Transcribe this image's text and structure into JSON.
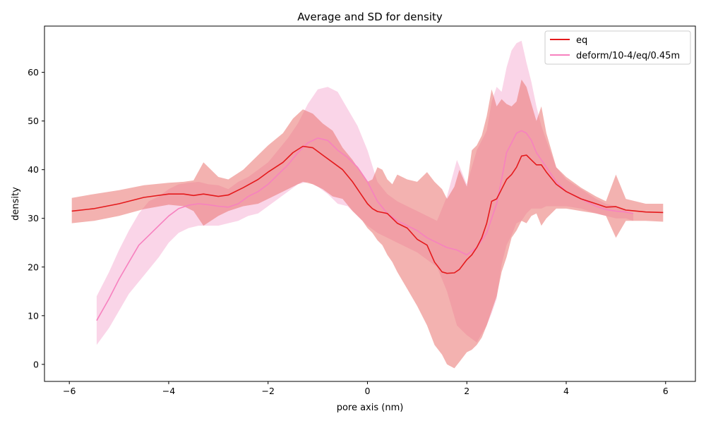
{
  "chart_data": {
    "type": "line",
    "title": "Average and SD for density",
    "xlabel": "pore axis (nm)",
    "ylabel": "density",
    "xlim": [
      -6.5,
      6.6
    ],
    "ylim": [
      -3.5,
      69.5
    ],
    "xticks": [
      -6,
      -4,
      -2,
      0,
      2,
      4,
      6
    ],
    "xtick_labels": [
      "−6",
      "−4",
      "−2",
      "0",
      "2",
      "4",
      "6"
    ],
    "yticks": [
      0,
      10,
      20,
      30,
      40,
      50,
      60
    ],
    "ytick_labels": [
      "0",
      "10",
      "20",
      "30",
      "40",
      "50",
      "60"
    ],
    "grid": false,
    "legend_position": "top-right",
    "series": [
      {
        "name": "eq",
        "color": "#e41a1c",
        "band_color": "#e9736f",
        "x": [
          -5.95,
          -5.5,
          -5.0,
          -4.5,
          -4.0,
          -3.7,
          -3.5,
          -3.3,
          -3.0,
          -2.8,
          -2.5,
          -2.2,
          -2.0,
          -1.7,
          -1.5,
          -1.3,
          -1.1,
          -0.9,
          -0.7,
          -0.5,
          -0.3,
          -0.1,
          0.0,
          0.1,
          0.2,
          0.3,
          0.4,
          0.5,
          0.6,
          0.8,
          1.0,
          1.2,
          1.35,
          1.5,
          1.6,
          1.75,
          1.85,
          2.0,
          2.1,
          2.2,
          2.3,
          2.4,
          2.5,
          2.6,
          2.7,
          2.8,
          2.9,
          3.0,
          3.1,
          3.2,
          3.3,
          3.4,
          3.5,
          3.6,
          3.8,
          4.0,
          4.3,
          4.6,
          4.8,
          5.0,
          5.2,
          5.6,
          5.95
        ],
        "y": [
          31.5,
          32.0,
          33.0,
          34.3,
          35.0,
          35.0,
          34.7,
          35.0,
          34.5,
          34.8,
          36.3,
          38.0,
          39.5,
          41.5,
          43.5,
          44.8,
          44.5,
          43.0,
          41.5,
          40.0,
          37.5,
          34.5,
          33.0,
          32.0,
          31.4,
          31.2,
          31.0,
          30.0,
          29.0,
          28.0,
          25.7,
          24.5,
          21.0,
          19.0,
          18.7,
          18.8,
          19.5,
          21.5,
          22.5,
          24.0,
          26.0,
          29.0,
          33.5,
          34.0,
          36.0,
          38.0,
          39.0,
          40.5,
          42.8,
          43.0,
          42.0,
          41.0,
          41.0,
          39.5,
          37.0,
          35.5,
          34.0,
          33.0,
          32.3,
          32.4,
          31.7,
          31.3,
          31.2
        ],
        "upper": [
          34.2,
          35.0,
          35.8,
          36.8,
          37.3,
          37.5,
          37.8,
          41.5,
          38.5,
          38.0,
          40.0,
          43.0,
          45.0,
          47.5,
          50.5,
          52.4,
          51.5,
          49.5,
          48.0,
          44.5,
          42.0,
          39.0,
          37.5,
          38.0,
          40.5,
          40.0,
          38.0,
          37.0,
          39.0,
          38.0,
          37.5,
          39.5,
          37.5,
          36.0,
          34.0,
          36.5,
          40.0,
          36.5,
          44.0,
          45.0,
          47.0,
          51.0,
          56.5,
          53.0,
          54.5,
          53.5,
          53.0,
          54.0,
          58.5,
          57.0,
          53.5,
          50.0,
          53.0,
          47.5,
          40.5,
          38.5,
          36.3,
          34.5,
          33.5,
          39.0,
          34.0,
          33.0,
          33.0
        ],
        "lower": [
          29.0,
          29.5,
          30.5,
          31.9,
          32.8,
          32.5,
          31.5,
          28.5,
          30.5,
          31.5,
          32.5,
          33.0,
          34.0,
          35.5,
          36.5,
          37.5,
          37.0,
          36.0,
          34.5,
          34.0,
          31.5,
          29.5,
          28.0,
          27.0,
          25.5,
          24.5,
          22.5,
          21.0,
          19.0,
          15.5,
          12.0,
          8.0,
          4.0,
          2.0,
          0.0,
          -0.8,
          0.5,
          2.5,
          3.0,
          4.0,
          5.5,
          8.0,
          11.0,
          14.0,
          19.0,
          22.0,
          26.0,
          27.5,
          29.5,
          29.0,
          30.5,
          31.0,
          28.5,
          30.0,
          32.0,
          32.0,
          31.5,
          31.0,
          30.5,
          26.0,
          29.5,
          29.5,
          29.3
        ]
      },
      {
        "name": "deform/10-4/eq/0.45m",
        "color": "#f781bf",
        "band_color": "#f6b3d6",
        "x": [
          -5.45,
          -5.2,
          -5.0,
          -4.8,
          -4.6,
          -4.4,
          -4.2,
          -4.0,
          -3.8,
          -3.6,
          -3.4,
          -3.2,
          -3.0,
          -2.8,
          -2.6,
          -2.4,
          -2.2,
          -2.0,
          -1.8,
          -1.6,
          -1.4,
          -1.2,
          -1.0,
          -0.8,
          -0.6,
          -0.4,
          -0.2,
          0.0,
          0.2,
          0.4,
          0.6,
          0.8,
          1.0,
          1.2,
          1.4,
          1.6,
          1.8,
          2.0,
          2.2,
          2.4,
          2.5,
          2.6,
          2.7,
          2.8,
          2.9,
          3.0,
          3.1,
          3.2,
          3.3,
          3.4,
          3.5,
          3.6,
          3.8,
          4.0,
          4.3,
          4.6,
          4.8,
          5.0,
          5.2,
          5.35
        ],
        "y": [
          9.0,
          13.5,
          17.5,
          21.0,
          24.5,
          26.5,
          28.5,
          30.5,
          32.0,
          32.7,
          33.0,
          32.8,
          32.5,
          32.3,
          33.0,
          34.5,
          35.5,
          37.0,
          39.0,
          41.0,
          43.5,
          45.5,
          46.5,
          46.0,
          44.0,
          42.5,
          40.5,
          37.5,
          33.5,
          31.0,
          29.5,
          28.5,
          27.5,
          26.0,
          25.0,
          24.0,
          23.5,
          22.5,
          24.0,
          27.0,
          30.0,
          33.0,
          38.0,
          43.5,
          45.5,
          47.5,
          48.0,
          47.5,
          46.0,
          43.5,
          42.0,
          40.5,
          37.5,
          35.5,
          34.0,
          32.5,
          31.8,
          31.5,
          31.3,
          31.0
        ],
        "upper": [
          14.0,
          19.0,
          23.5,
          27.5,
          31.0,
          33.5,
          34.5,
          36.0,
          37.0,
          37.3,
          37.5,
          37.0,
          36.8,
          36.0,
          37.5,
          38.5,
          40.0,
          41.5,
          44.0,
          46.5,
          49.5,
          53.5,
          56.5,
          57.0,
          56.0,
          52.5,
          49.0,
          44.0,
          37.5,
          35.0,
          33.5,
          32.5,
          31.5,
          30.5,
          29.5,
          34.5,
          42.0,
          37.0,
          44.0,
          48.0,
          54.0,
          57.0,
          56.0,
          61.0,
          64.5,
          66.0,
          66.5,
          62.0,
          58.0,
          53.0,
          49.0,
          46.0,
          40.5,
          38.0,
          36.0,
          34.0,
          33.0,
          32.5,
          31.5,
          31.0
        ],
        "lower": [
          4.0,
          7.5,
          11.0,
          14.5,
          17.0,
          19.5,
          22.0,
          25.0,
          27.0,
          28.0,
          28.5,
          28.5,
          28.5,
          29.0,
          29.5,
          30.5,
          31.0,
          32.5,
          34.0,
          35.5,
          37.0,
          37.5,
          36.5,
          35.0,
          33.0,
          32.5,
          30.5,
          28.5,
          27.0,
          26.0,
          25.0,
          24.0,
          23.0,
          21.5,
          20.0,
          15.0,
          8.0,
          6.0,
          4.5,
          8.0,
          10.5,
          13.5,
          20.5,
          24.5,
          26.5,
          29.0,
          29.5,
          31.0,
          32.0,
          32.0,
          32.0,
          32.5,
          32.5,
          32.5,
          32.0,
          31.0,
          30.5,
          30.0,
          30.0,
          29.5
        ]
      }
    ]
  }
}
